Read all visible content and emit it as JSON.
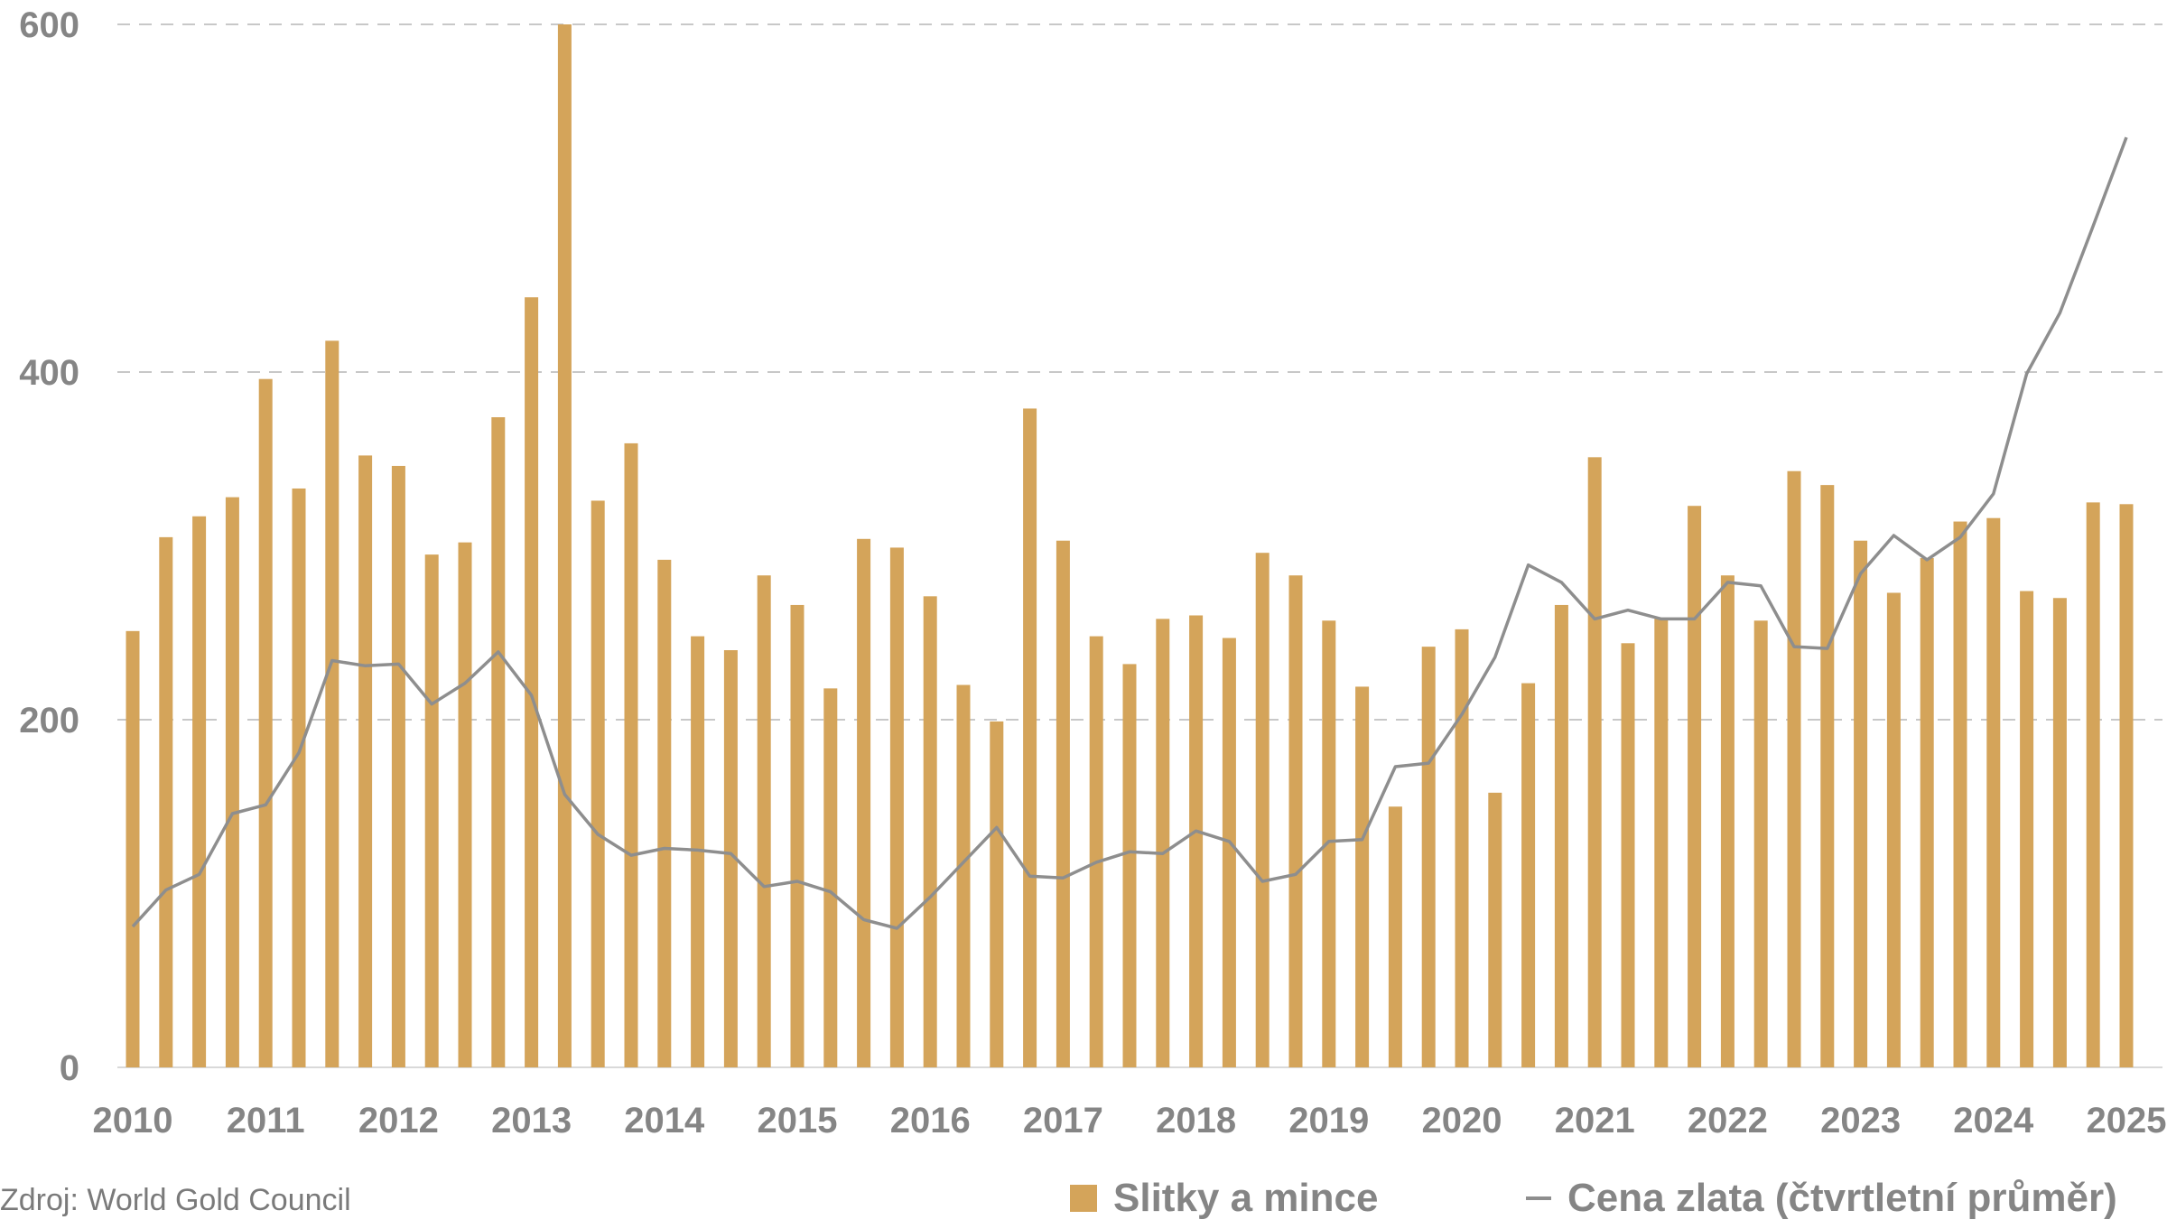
{
  "source": "Zdroj: World Gold Council",
  "legend": {
    "bars_label": "Slitky a mince",
    "line_label": "Cena zlata (čtvrtletní průměr)"
  },
  "colors": {
    "bar": "#d4a45a",
    "line": "#8e8e8e",
    "grid": "#c8c8c8",
    "axis_text": "#858585"
  },
  "chart_data": {
    "type": "bar",
    "title": "",
    "xlabel": "",
    "ylabel": "",
    "ylim": [
      0,
      600
    ],
    "yticks": [
      0,
      200,
      400,
      600
    ],
    "grid": true,
    "legend_position": "bottom-right",
    "year_labels": [
      "2010",
      "2011",
      "2012",
      "2013",
      "2014",
      "2015",
      "2016",
      "2017",
      "2018",
      "2019",
      "2020",
      "2021",
      "2022",
      "2023",
      "2024",
      "2025"
    ],
    "categories": [
      "2010 Q1",
      "2010 Q2",
      "2010 Q3",
      "2010 Q4",
      "2011 Q1",
      "2011 Q2",
      "2011 Q3",
      "2011 Q4",
      "2012 Q1",
      "2012 Q2",
      "2012 Q3",
      "2012 Q4",
      "2013 Q1",
      "2013 Q2",
      "2013 Q3",
      "2013 Q4",
      "2014 Q1",
      "2014 Q2",
      "2014 Q3",
      "2014 Q4",
      "2015 Q1",
      "2015 Q2",
      "2015 Q3",
      "2015 Q4",
      "2016 Q1",
      "2016 Q2",
      "2016 Q3",
      "2016 Q4",
      "2017 Q1",
      "2017 Q2",
      "2017 Q3",
      "2017 Q4",
      "2018 Q1",
      "2018 Q2",
      "2018 Q3",
      "2018 Q4",
      "2019 Q1",
      "2019 Q2",
      "2019 Q3",
      "2019 Q4",
      "2020 Q1",
      "2020 Q2",
      "2020 Q3",
      "2020 Q4",
      "2021 Q1",
      "2021 Q2",
      "2021 Q3",
      "2021 Q4",
      "2022 Q1",
      "2022 Q2",
      "2022 Q3",
      "2022 Q4",
      "2023 Q1",
      "2023 Q2",
      "2023 Q3",
      "2023 Q4",
      "2024 Q1",
      "2024 Q2",
      "2024 Q3",
      "2024 Q4",
      "2025 Q1"
    ],
    "series": [
      {
        "name": "Slitky a mince",
        "type": "bar",
        "values": [
          251,
          305,
          317,
          328,
          396,
          333,
          418,
          352,
          346,
          295,
          302,
          374,
          443,
          600,
          326,
          359,
          292,
          248,
          240,
          283,
          266,
          218,
          304,
          299,
          271,
          220,
          199,
          379,
          303,
          248,
          232,
          258,
          260,
          247,
          296,
          283,
          257,
          219,
          150,
          242,
          252,
          158,
          221,
          266,
          351,
          244,
          258,
          323,
          283,
          257,
          343,
          335,
          303,
          273,
          293,
          314,
          316,
          274,
          270,
          325,
          324
        ]
      },
      {
        "name": "Cena zlata (čtvrtletní průměr)",
        "type": "line",
        "values": [
          81,
          102,
          111,
          146,
          151,
          181,
          234,
          231,
          232,
          209,
          221,
          239,
          214,
          157,
          134,
          122,
          126,
          125,
          123,
          104,
          107,
          101,
          85,
          80,
          98,
          118,
          138,
          110,
          109,
          118,
          124,
          123,
          136,
          130,
          107,
          111,
          130,
          131,
          173,
          175,
          203,
          236,
          289,
          279,
          258,
          263,
          258,
          258,
          279,
          277,
          242,
          241,
          284,
          306,
          292,
          305,
          330,
          399,
          434,
          484,
          535
        ]
      }
    ]
  }
}
